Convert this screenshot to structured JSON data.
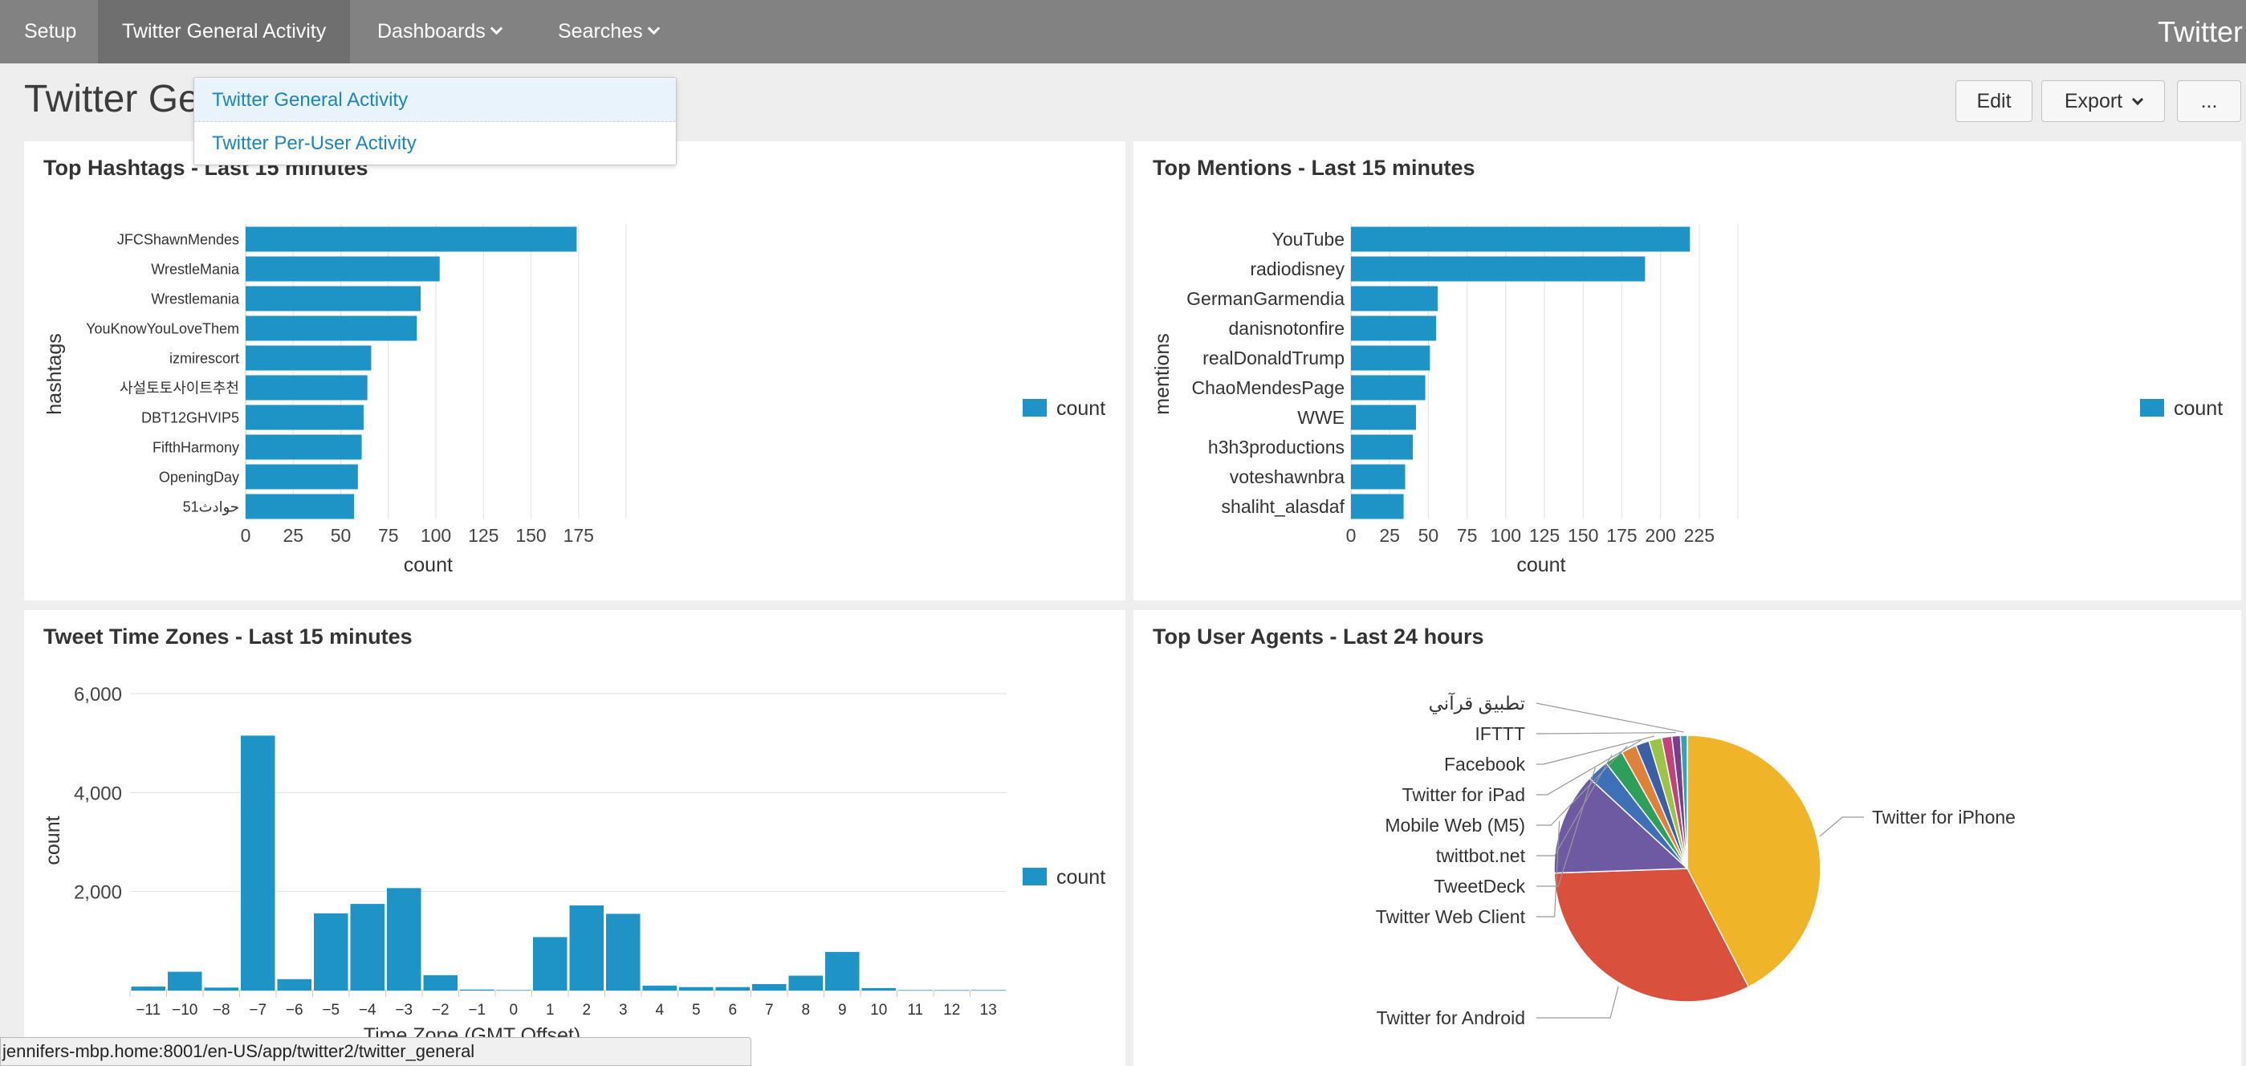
{
  "nav": {
    "items": [
      {
        "label": "Setup"
      },
      {
        "label": "Twitter General Activity"
      },
      {
        "label": "Dashboards"
      },
      {
        "label": "Searches"
      }
    ],
    "app_title": "Twitter"
  },
  "page": {
    "title": "Twitter General Activity",
    "visible_title": "Twitter Ge",
    "edit_label": "Edit",
    "export_label": "Export",
    "more_label": "..."
  },
  "dropdown": {
    "items": [
      {
        "label": "Twitter General Activity"
      },
      {
        "label": "Twitter Per-User Activity"
      }
    ]
  },
  "colors": {
    "bar": "#1e93c6",
    "pie": [
      "#f0b429",
      "#d9513c",
      "#6d5aa3",
      "#3f6fb6",
      "#2e9e5b",
      "#e0813a",
      "#3a5fa8",
      "#9ac446",
      "#c2427a",
      "#7d3b8c",
      "#2ba5b4"
    ]
  },
  "panels": {
    "hashtags": {
      "title": "Top Hashtags - Last 15 minutes"
    },
    "mentions": {
      "title": "Top Mentions - Last 15 minutes"
    },
    "timezones": {
      "title": "Tweet Time Zones - Last 15 minutes"
    },
    "agents": {
      "title": "Top User Agents - Last 24 hours"
    }
  },
  "status_url": "jennifers-mbp.home:8001/en-US/app/twitter2/twitter_general",
  "chart_data": [
    {
      "id": "hashtags",
      "type": "bar",
      "orientation": "horizontal",
      "title": "Top Hashtags - Last 15 minutes",
      "categories": [
        "JFCShawnMendes",
        "WrestleMania",
        "Wrestlemania",
        "YouKnowYouLoveThem",
        "izmirescort",
        "사설토토사이트추천",
        "DBT12GHVIP5",
        "FifthHarmony",
        "OpeningDay",
        "51حوادث"
      ],
      "values": [
        174,
        102,
        92,
        90,
        66,
        64,
        62,
        61,
        59,
        57
      ],
      "xlabel": "count",
      "ylabel": "hashtags",
      "xlim": [
        0,
        200
      ],
      "xticks": [
        0,
        25,
        50,
        75,
        100,
        125,
        150,
        175
      ],
      "legend": "count"
    },
    {
      "id": "mentions",
      "type": "bar",
      "orientation": "horizontal",
      "title": "Top Mentions - Last 15 minutes",
      "categories": [
        "YouTube",
        "radiodisney",
        "GermanGarmendia",
        "danisnotonfire",
        "realDonaldTrump",
        "ChaoMendesPage",
        "WWE",
        "h3h3productions",
        "voteshawnbra",
        "shaliht_alasdaf"
      ],
      "values": [
        219,
        190,
        56,
        55,
        51,
        48,
        42,
        40,
        35,
        34
      ],
      "xlabel": "count",
      "ylabel": "mentions",
      "xlim": [
        0,
        250
      ],
      "xticks": [
        0,
        25,
        50,
        75,
        100,
        125,
        150,
        175,
        200,
        225
      ],
      "legend": "count"
    },
    {
      "id": "timezones",
      "type": "bar",
      "title": "Tweet Time Zones - Last 15 minutes",
      "categories": [
        "-11",
        "-10",
        "-8",
        "-7",
        "-6",
        "-5",
        "-4",
        "-3",
        "-2",
        "-1",
        "0",
        "1",
        "2",
        "3",
        "4",
        "5",
        "6",
        "7",
        "8",
        "9",
        "10",
        "11",
        "12",
        "13"
      ],
      "values": [
        80,
        380,
        60,
        5150,
        230,
        1560,
        1750,
        2070,
        310,
        20,
        10,
        1080,
        1720,
        1550,
        100,
        70,
        70,
        130,
        300,
        780,
        50,
        10,
        10,
        10
      ],
      "xlabel": "Time Zone (GMT Offset)",
      "ylabel": "count",
      "ylim": [
        0,
        6000
      ],
      "yticks": [
        "2,000",
        "4,000",
        "6,000"
      ],
      "yticks_values": [
        2000,
        4000,
        6000
      ],
      "legend": "count"
    },
    {
      "id": "agents",
      "type": "pie",
      "title": "Top User Agents - Last 24 hours",
      "slices": [
        {
          "label": "Twitter for iPhone",
          "value": 41
        },
        {
          "label": "Twitter for Android",
          "value": 31
        },
        {
          "label": "Twitter Web Client",
          "value": 12
        },
        {
          "label": "TweetDeck",
          "value": 2.6
        },
        {
          "label": "twittbot.net",
          "value": 2.2
        },
        {
          "label": "Mobile Web (M5)",
          "value": 1.8
        },
        {
          "label": "Twitter for iPad",
          "value": 1.6
        },
        {
          "label": "Facebook",
          "value": 1.5
        },
        {
          "label": "",
          "value": 1.2
        },
        {
          "label": "IFTTT",
          "value": 1.0
        },
        {
          "label": "تطبيق قرآني",
          "value": 0.8
        }
      ]
    }
  ]
}
